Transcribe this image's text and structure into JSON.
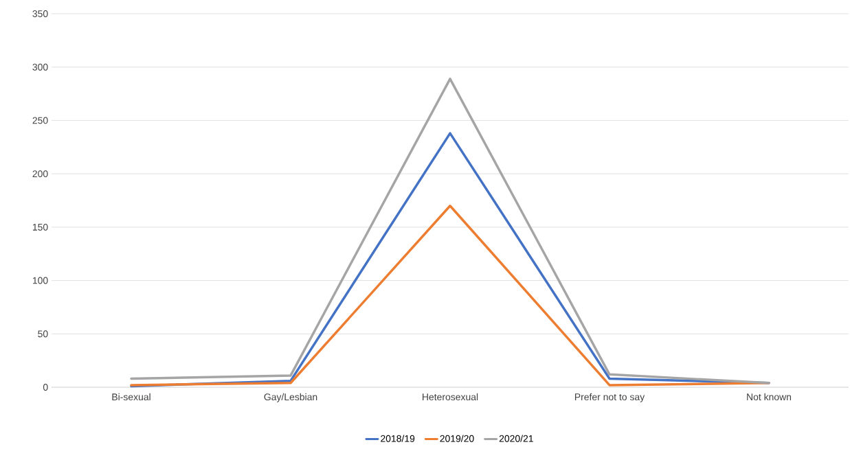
{
  "chart_data": {
    "type": "line",
    "categories": [
      "Bi-sexual",
      "Gay/Lesbian",
      "Heterosexual",
      "Prefer not to say",
      "Not known"
    ],
    "series": [
      {
        "name": "2018/19",
        "color": "#4472c4",
        "values": [
          1,
          6,
          238,
          8,
          4
        ]
      },
      {
        "name": "2019/20",
        "color": "#ed7d31",
        "values": [
          2,
          4,
          170,
          2,
          4
        ]
      },
      {
        "name": "2020/21",
        "color": "#a5a5a5",
        "values": [
          8,
          11,
          289,
          12,
          4
        ]
      }
    ],
    "ylim": [
      0,
      350
    ],
    "yticks": [
      0,
      50,
      100,
      150,
      200,
      250,
      300,
      350
    ],
    "grid": "y",
    "legend": "bottom",
    "marker": "none",
    "line_style": "solid"
  }
}
